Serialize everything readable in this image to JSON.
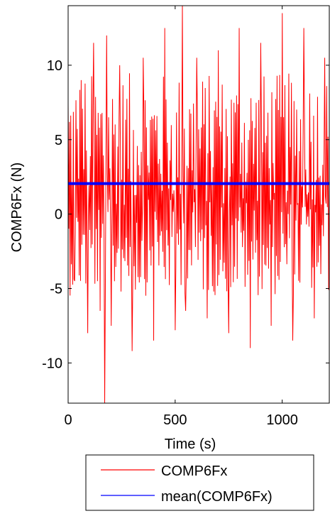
{
  "chart_data": {
    "type": "line",
    "xlabel": "Time (s)",
    "ylabel": "COMP6Fx (N)",
    "xlim": [
      0,
      1220
    ],
    "ylim": [
      -12.7,
      14.0
    ],
    "xticks": [
      0,
      500,
      1000
    ],
    "xtick_labels": [
      "0",
      "500",
      "1000"
    ],
    "yticks": [
      -10,
      -5,
      0,
      5,
      10
    ],
    "ytick_labels": [
      "-10",
      "-5",
      "0",
      "5",
      "10"
    ],
    "grid": false,
    "legend_position": "bottom, outside plot",
    "series": [
      {
        "name": "COMP6Fx",
        "color": "#ff0000",
        "description_values": {
          "x_start": 0,
          "x_end": 1220,
          "approx_samples": 400,
          "typical_max": 9.5,
          "typical_min": -5.5,
          "extreme_max": 14.0,
          "extreme_min": -12.7
        },
        "x": [
          0,
          30,
          60,
          90,
          120,
          150,
          170,
          180,
          200,
          240,
          300,
          350,
          400,
          450,
          500,
          535,
          550,
          600,
          650,
          700,
          750,
          800,
          850,
          900,
          950,
          1000,
          1050,
          1100,
          1150,
          1200,
          1220
        ],
        "y": [
          7.5,
          -4.5,
          9.0,
          -8.0,
          11.5,
          -6.5,
          -12.7,
          12.0,
          -7.5,
          10.0,
          -9.2,
          10.5,
          -8.5,
          12.5,
          -7.8,
          14.0,
          -6.5,
          10.5,
          -7.0,
          11.0,
          -8.0,
          12.5,
          -9.0,
          11.5,
          -7.5,
          13.5,
          -8.5,
          12.5,
          -7.0,
          10.5,
          2.0
        ]
      },
      {
        "name": "mean(COMP6Fx)",
        "color": "#0000ff",
        "x": [
          0,
          1220
        ],
        "y": [
          2.05,
          2.05
        ]
      }
    ]
  }
}
